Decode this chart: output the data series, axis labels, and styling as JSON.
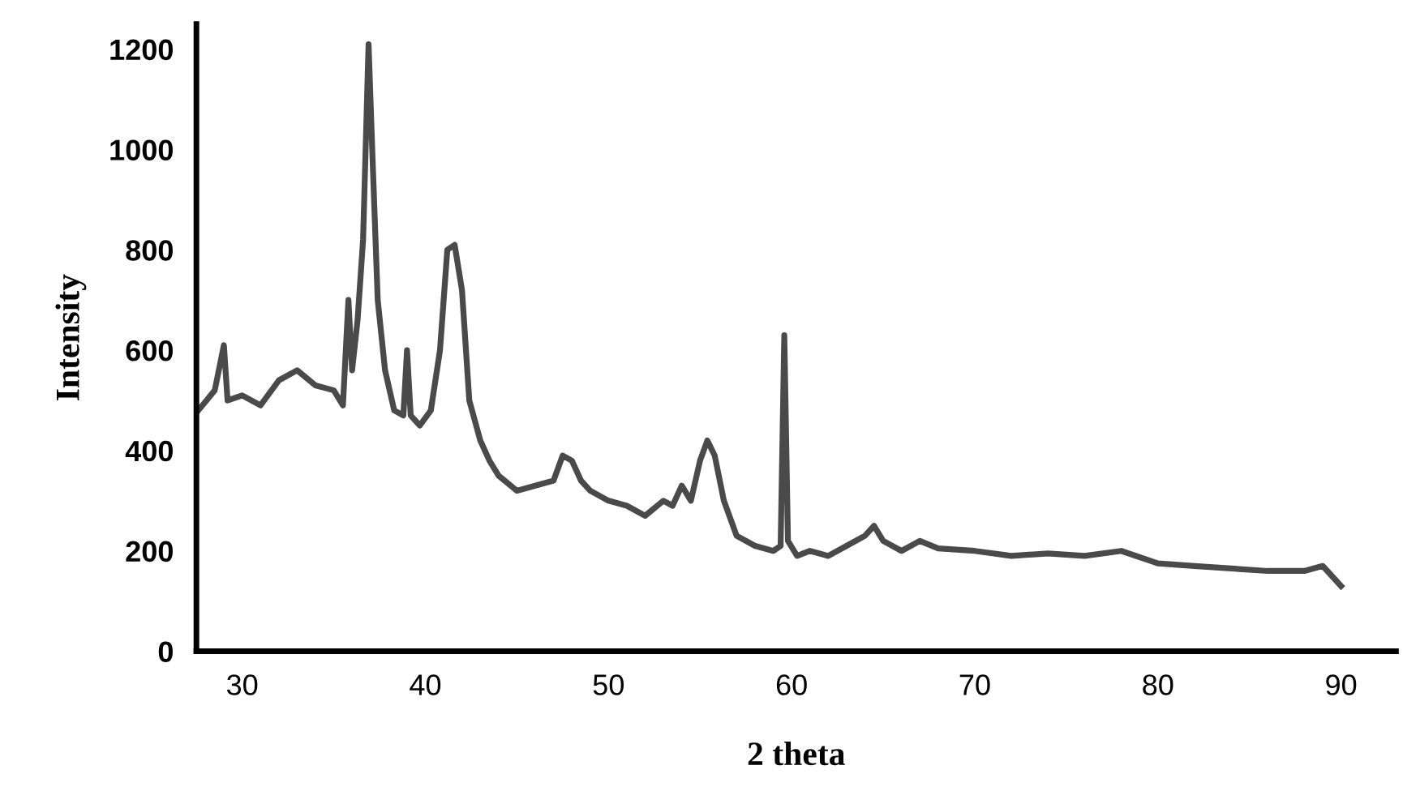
{
  "chart_data": {
    "type": "line",
    "xlabel": "2 theta",
    "ylabel": "Intensity",
    "xlim": [
      27.5,
      93
    ],
    "xticks": [
      30,
      40,
      50,
      60,
      70,
      80,
      90
    ],
    "ylim": [
      0,
      1250
    ],
    "yticks": [
      0,
      200,
      400,
      600,
      800,
      1000,
      1200
    ],
    "grid": false,
    "marker": "none",
    "line_style": "solid",
    "series": [
      {
        "color": "#4a4a4a",
        "x": [
          27.6,
          28.5,
          29.0,
          29.2,
          30,
          31,
          32,
          33,
          34,
          35,
          35.5,
          35.8,
          36.0,
          36.3,
          36.6,
          36.9,
          37.1,
          37.4,
          37.8,
          38.3,
          38.8,
          39.0,
          39.2,
          39.7,
          40.3,
          40.8,
          41.2,
          41.6,
          42.0,
          42.4,
          43,
          43.5,
          44,
          45,
          46,
          47,
          47.5,
          48,
          48.5,
          49,
          50,
          51,
          52,
          53,
          53.5,
          54,
          54.5,
          55,
          55.4,
          55.8,
          56.3,
          57,
          58,
          59,
          59.4,
          59.6,
          59.8,
          60.3,
          61,
          62,
          63,
          64,
          64.5,
          65,
          66,
          67,
          68,
          70,
          72,
          74,
          76,
          78,
          80,
          82,
          84,
          86,
          88,
          89,
          90
        ],
        "values": [
          480,
          520,
          610,
          500,
          510,
          490,
          540,
          560,
          530,
          520,
          490,
          700,
          560,
          660,
          820,
          1210,
          1000,
          700,
          560,
          480,
          470,
          600,
          470,
          450,
          480,
          600,
          800,
          810,
          720,
          500,
          420,
          380,
          350,
          320,
          330,
          340,
          390,
          380,
          340,
          320,
          300,
          290,
          270,
          300,
          290,
          330,
          300,
          380,
          420,
          390,
          300,
          230,
          210,
          200,
          210,
          630,
          220,
          190,
          200,
          190,
          210,
          230,
          250,
          220,
          200,
          220,
          205,
          200,
          190,
          195,
          190,
          200,
          175,
          170,
          165,
          160,
          160,
          170,
          130
        ]
      }
    ]
  }
}
